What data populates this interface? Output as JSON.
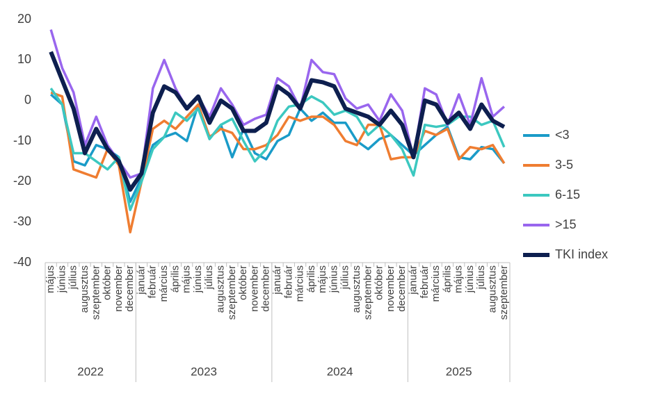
{
  "chart_data": {
    "type": "line",
    "groups": [
      {
        "label": "2022",
        "categories": [
          "május",
          "június",
          "július",
          "augusztus",
          "szeptember",
          "október",
          "november",
          "december"
        ]
      },
      {
        "label": "2023",
        "categories": [
          "január",
          "február",
          "március",
          "április",
          "május",
          "június",
          "július",
          "augusztus",
          "szeptember",
          "október",
          "november",
          "december"
        ]
      },
      {
        "label": "2024",
        "categories": [
          "január",
          "február",
          "március",
          "április",
          "május",
          "június",
          "július",
          "augusztus",
          "szeptember",
          "október",
          "november",
          "december"
        ]
      },
      {
        "label": "2025",
        "categories": [
          "január",
          "február",
          "március",
          "április",
          "május",
          "június",
          "július",
          "augusztus",
          "szeptember"
        ]
      }
    ],
    "series": [
      {
        "name": "<3",
        "color": "#1a9bc8",
        "values": [
          1.5,
          -1,
          -15,
          -16,
          -11,
          -12,
          -14,
          -25,
          -19,
          -11,
          -9,
          -8,
          -10,
          -1,
          -9.5,
          -6,
          -14,
          -7,
          -13,
          -14.5,
          -10,
          -8.5,
          -2,
          -5,
          -3,
          -5.5,
          -5.5,
          -10,
          -12,
          -9.5,
          -8.5,
          -11,
          -13.5,
          -11,
          -8.5,
          -6.5,
          -14,
          -14.5,
          -11.5,
          -12,
          -15.5
        ]
      },
      {
        "name": "3-5",
        "color": "#ef7d31",
        "values": [
          2,
          1,
          -17,
          -18,
          -19,
          -12,
          -16,
          -32.5,
          -20,
          -7,
          -5,
          -7,
          -4,
          -1,
          -9,
          -7,
          -8,
          -12,
          -12,
          -11,
          -8.5,
          -4,
          -5,
          -4,
          -4,
          -6,
          -10,
          -11,
          -6,
          -6,
          -14.5,
          -14,
          -14,
          -7.5,
          -8.5,
          -7,
          -14.5,
          -11.5,
          -12,
          -11,
          -15.5
        ]
      },
      {
        "name": "6-15",
        "color": "#3cc8c0",
        "values": [
          3,
          -1,
          -13,
          -13,
          -15,
          -17,
          -14,
          -27,
          -20,
          -12,
          -9,
          -3,
          -5,
          -2,
          -9.5,
          -6,
          -4.5,
          -10,
          -15,
          -12,
          -5,
          -1.5,
          -1,
          1,
          -0.5,
          -3.5,
          -2.5,
          -4,
          -8.5,
          -6,
          -8.5,
          -12,
          -18.5,
          -6,
          -6.5,
          -6,
          -4,
          -4,
          -6,
          -5,
          -11.5
        ]
      },
      {
        "name": ">15",
        "color": "#9966ee",
        "values": [
          17.5,
          8,
          2,
          -11,
          -4,
          -11,
          -15,
          -19,
          -18,
          3,
          10,
          3,
          -2,
          1,
          -4,
          3,
          -1,
          -6,
          -4.5,
          -3.5,
          5.5,
          3.5,
          -2,
          10,
          7,
          6.5,
          0.5,
          -2,
          -1,
          -5,
          1.5,
          -2.5,
          -14,
          3,
          1.5,
          -6,
          1.5,
          -6,
          5.5,
          -4,
          -1.5
        ]
      },
      {
        "name": "TKI index",
        "color": "#0d1f4f",
        "values": [
          12,
          5,
          -2,
          -13,
          -7,
          -12,
          -15,
          -22,
          -18,
          -3,
          3.5,
          2,
          -2,
          1,
          -5.5,
          0,
          -2,
          -7.5,
          -7.5,
          -5.5,
          3.5,
          1.5,
          -2,
          5,
          4.5,
          3.5,
          -2,
          -3,
          -4,
          -6,
          -2.5,
          -6,
          -14,
          0,
          -1,
          -5.5,
          -3,
          -7,
          -1,
          -5,
          -6.5
        ]
      }
    ],
    "ylim": [
      -40,
      20
    ],
    "yticks": [
      -40,
      -30,
      -20,
      -10,
      0,
      10,
      20
    ],
    "legend": "right"
  }
}
